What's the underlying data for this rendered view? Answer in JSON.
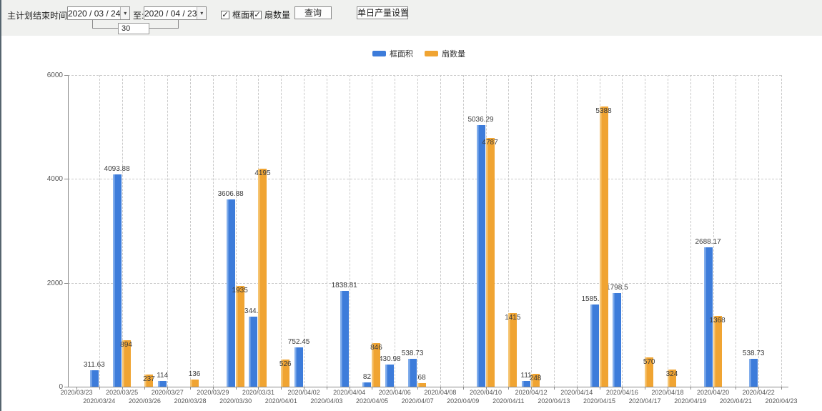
{
  "toolbar": {
    "date_label": "主计划结束时间:",
    "date_from": "2020 / 03 / 24",
    "to_label": "至:",
    "date_to": "2020 / 04 / 23",
    "days_value": "30",
    "checkbox_area_label": "框面积",
    "checkbox_area_checked": "✓",
    "checkbox_fan_label": "扇数量",
    "checkbox_fan_checked": "✓",
    "query_button": "查询",
    "daily_output_button": "单日产量设置",
    "combo_arrow": "▾"
  },
  "legend": {
    "items": [
      {
        "label": "框面积",
        "color": "#3d7cda"
      },
      {
        "label": "扇数量",
        "color": "#f0a432"
      }
    ]
  },
  "chart_data": {
    "type": "bar",
    "title": "",
    "xlabel": "",
    "ylabel": "",
    "ylim": [
      0,
      6000
    ],
    "yticks": [
      0,
      2000,
      4000,
      6000
    ],
    "grid": true,
    "legend_position": "top-center",
    "categories": [
      "2020/03/23",
      "2020/03/24",
      "2020/03/25",
      "2020/03/26",
      "2020/03/27",
      "2020/03/28",
      "2020/03/29",
      "2020/03/30",
      "2020/03/31",
      "2020/04/01",
      "2020/04/02",
      "2020/04/03",
      "2020/04/04",
      "2020/04/05",
      "2020/04/06",
      "2020/04/07",
      "2020/04/08",
      "2020/04/09",
      "2020/04/10",
      "2020/04/11",
      "2020/04/12",
      "2020/04/13",
      "2020/04/14",
      "2020/04/15",
      "2020/04/16",
      "2020/04/17",
      "2020/04/18",
      "2020/04/19",
      "2020/04/20",
      "2020/04/21",
      "2020/04/22",
      "2020/04/23"
    ],
    "series": [
      {
        "name": "框面积",
        "color": "#3d7cda",
        "highlight": "#82aeec",
        "values": [
          null,
          311.63,
          4093.88,
          null,
          114,
          null,
          null,
          3606.88,
          1344.95,
          null,
          752.45,
          null,
          1838.81,
          82,
          430.98,
          538.73,
          null,
          null,
          5036.29,
          null,
          111,
          null,
          null,
          1585.96,
          1798.5,
          null,
          null,
          null,
          2688.17,
          null,
          538.73,
          null
        ]
      },
      {
        "name": "扇数量",
        "color": "#f0a432",
        "highlight": "#f6c573",
        "values": [
          null,
          null,
          894,
          237,
          null,
          136,
          null,
          1935,
          4195,
          526,
          null,
          null,
          null,
          846,
          null,
          68,
          null,
          null,
          4787,
          1415,
          248,
          null,
          null,
          5388,
          null,
          570,
          324,
          null,
          1368,
          null,
          null,
          null
        ]
      }
    ]
  }
}
